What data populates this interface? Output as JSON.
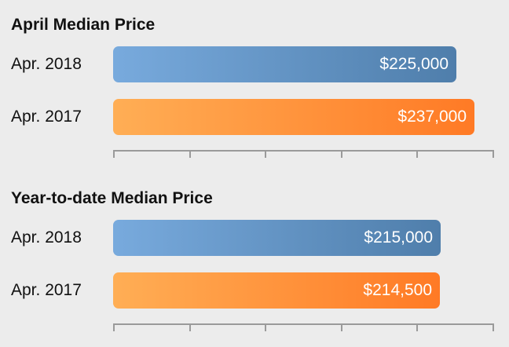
{
  "colors": {
    "background": "#ececec",
    "series_2018": [
      "#78aadd",
      "#4f7eab"
    ],
    "series_2017": [
      "#ffae55",
      "#ff7a25"
    ],
    "axis": "#9a9a9a"
  },
  "chart_data": [
    {
      "type": "bar",
      "orientation": "horizontal",
      "title": "April Median Price",
      "categories": [
        "Apr. 2018",
        "Apr. 2017"
      ],
      "values": [
        225000,
        237000
      ],
      "value_labels": [
        "$225,000",
        "$237,000"
      ],
      "xlim": [
        0,
        250000
      ],
      "grid": false
    },
    {
      "type": "bar",
      "orientation": "horizontal",
      "title": "Year-to-date Median Price",
      "categories": [
        "Apr. 2018",
        "Apr. 2017"
      ],
      "values": [
        215000,
        214500
      ],
      "value_labels": [
        "$215,000",
        "$214,500"
      ],
      "xlim": [
        0,
        250000
      ],
      "grid": false
    }
  ]
}
